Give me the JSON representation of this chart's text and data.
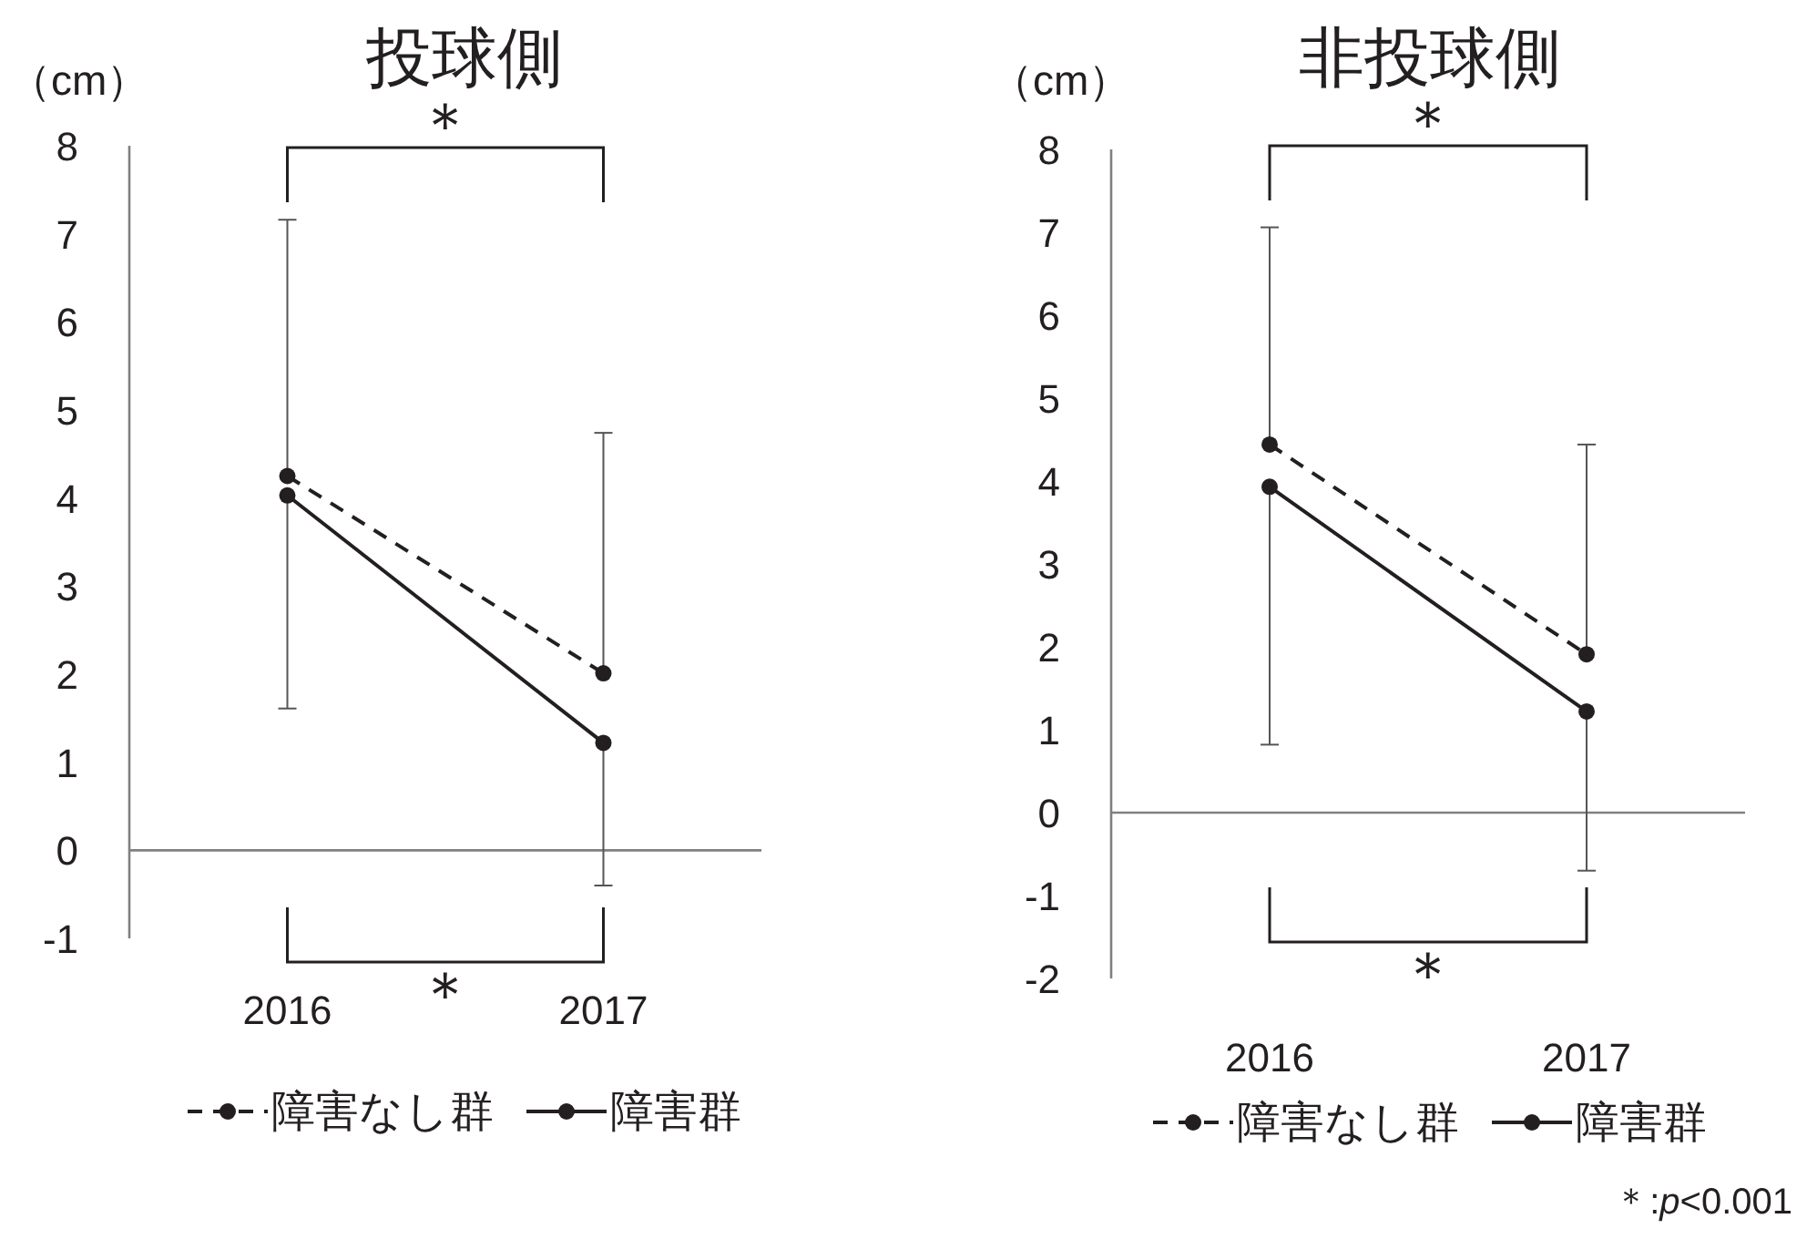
{
  "chart_data": [
    {
      "type": "line",
      "title": "投球側",
      "ylabel": "（cm）",
      "categories": [
        "2016",
        "2017"
      ],
      "ylim": [
        -1,
        8
      ],
      "yticks": [
        -1,
        0,
        1,
        2,
        3,
        4,
        5,
        6,
        7,
        8
      ],
      "legend": "bottom",
      "marker": "circle",
      "series": [
        {
          "name": "障害なし群",
          "color": "#231f20",
          "line_style": "dashed",
          "values": [
            4.25,
            2.01
          ],
          "errors": [
            [
              4.25,
              7.16
            ],
            [
              2.01,
              4.74
            ]
          ]
        },
        {
          "name": "障害群",
          "color": "#231f20",
          "line_style": "solid",
          "values": [
            4.03,
            1.22
          ],
          "errors": [
            [
              1.61,
              4.03
            ],
            [
              -0.4,
              1.22
            ]
          ]
        }
      ],
      "annotations": [
        "＊",
        "＊"
      ]
    },
    {
      "type": "line",
      "title": "非投球側",
      "ylabel": "（cm）",
      "categories": [
        "2016",
        "2017"
      ],
      "ylim": [
        -2,
        8
      ],
      "yticks": [
        -2,
        -1,
        0,
        1,
        2,
        3,
        4,
        5,
        6,
        7,
        8
      ],
      "legend": "bottom",
      "marker": "circle",
      "series": [
        {
          "name": "障害なし群",
          "color": "#231f20",
          "line_style": "dashed",
          "values": [
            4.44,
            1.91
          ],
          "errors": [
            [
              4.44,
              7.06
            ],
            [
              1.91,
              4.44
            ]
          ]
        },
        {
          "name": "障害群",
          "color": "#231f20",
          "line_style": "solid",
          "values": [
            3.93,
            1.22
          ],
          "errors": [
            [
              0.82,
              3.93
            ],
            [
              -0.7,
              1.22
            ]
          ]
        }
      ],
      "annotations": [
        "＊",
        "＊",
        "＊:*p*<0.001"
      ]
    }
  ]
}
